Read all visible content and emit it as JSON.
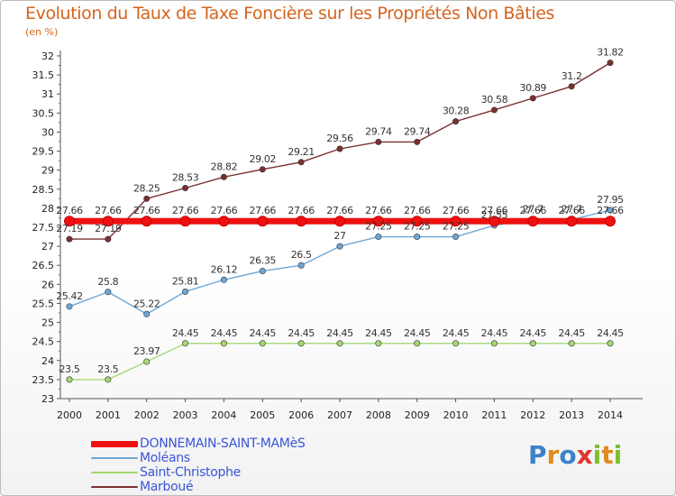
{
  "header": {
    "title": "Evolution du Taux de Taxe Foncière sur les Propriétés Non Bâties",
    "subtitle": "(en %)"
  },
  "logo": {
    "letters": [
      {
        "ch": "P",
        "color": "#3b83c9"
      },
      {
        "ch": "r",
        "color": "#e08a1e"
      },
      {
        "ch": "o",
        "color": "#3b83c9"
      },
      {
        "ch": "x",
        "color": "#e2342f"
      },
      {
        "ch": "i",
        "color": "#7bbf2e"
      },
      {
        "ch": "t",
        "color": "#e08a1e"
      },
      {
        "ch": "i",
        "color": "#7bbf2e"
      }
    ]
  },
  "chart_data": {
    "type": "line",
    "title": "Evolution du Taux de Taxe Foncière sur les Propriétés Non Bâties",
    "ylabel": "(en %)",
    "x": [
      "2000",
      "2001",
      "2002",
      "2003",
      "2004",
      "2005",
      "2006",
      "2007",
      "2008",
      "2009",
      "2010",
      "2011",
      "2012",
      "2013",
      "2014"
    ],
    "ylim": [
      23,
      32
    ],
    "yticks": [
      "23",
      "23.5",
      "24",
      "24.5",
      "25",
      "25.5",
      "26",
      "26.5",
      "27",
      "27.5",
      "28",
      "28.5",
      "29",
      "29.5",
      "30",
      "30.5",
      "31",
      "31.5",
      "32"
    ],
    "grid": false,
    "legend_position": "bottom-left",
    "series": [
      {
        "name": "DONNEMAIN-SAINT-MAMèS",
        "color": "#ee1111",
        "values": [
          27.66,
          27.66,
          27.66,
          27.66,
          27.66,
          27.66,
          27.66,
          27.66,
          27.66,
          27.66,
          27.66,
          27.66,
          27.66,
          27.66,
          27.66
        ],
        "labels": [
          "27.66",
          "27.66",
          "27.66",
          "27.66",
          "27.66",
          "27.66",
          "27.66",
          "27.66",
          "27.66",
          "27.66",
          "27.66",
          "27.66",
          "27.66",
          "27.66",
          "27.66"
        ]
      },
      {
        "name": "Moléans",
        "color": "#6fa7d6",
        "values": [
          25.42,
          25.8,
          25.22,
          25.81,
          26.12,
          26.35,
          26.5,
          27,
          27.25,
          27.25,
          27.25,
          27.55,
          27.7,
          27.7,
          27.95
        ],
        "labels": [
          "25.42",
          "25.8",
          "25.22",
          "25.81",
          "26.12",
          "26.35",
          "26.5",
          "27",
          "27.25",
          "27.25",
          "27.25",
          "27.55",
          "27.7",
          "27.7",
          "27.95"
        ]
      },
      {
        "name": "Saint-Christophe",
        "color": "#a4d873",
        "values": [
          23.5,
          23.5,
          23.97,
          24.45,
          24.45,
          24.45,
          24.45,
          24.45,
          24.45,
          24.45,
          24.45,
          24.45,
          24.45,
          24.45,
          24.45
        ],
        "labels": [
          "23.5",
          "23.5",
          "23.97",
          "24.45",
          "24.45",
          "24.45",
          "24.45",
          "24.45",
          "24.45",
          "24.45",
          "24.45",
          "24.45",
          "24.45",
          "24.45",
          "24.45"
        ]
      },
      {
        "name": "Marboué",
        "color": "#7b3030",
        "values": [
          27.19,
          27.19,
          28.25,
          28.53,
          28.82,
          29.02,
          29.21,
          29.56,
          29.74,
          29.74,
          30.28,
          30.58,
          30.89,
          31.2,
          31.82
        ],
        "labels": [
          "27.19",
          "27.19",
          "28.25",
          "28.53",
          "28.82",
          "29.02",
          "29.21",
          "29.56",
          "29.74",
          "29.74",
          "30.28",
          "30.58",
          "30.89",
          "31.2",
          "31.82"
        ]
      }
    ]
  }
}
